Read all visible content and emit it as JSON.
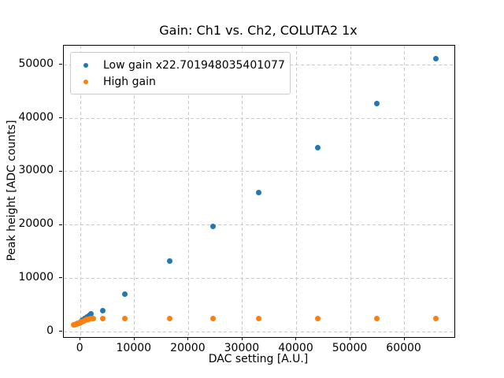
{
  "window": {
    "background": "#ffffff"
  },
  "chart_data": {
    "type": "scatter",
    "title": "Gain: Ch1 vs. Ch2, COLUTA2 1x",
    "xlabel": "DAC setting [A.U.]",
    "ylabel": "Peak height [ADC counts]",
    "xlim": [
      -3100,
      69250
    ],
    "ylim": [
      -1000,
      53600
    ],
    "xticks": [
      0,
      10000,
      20000,
      30000,
      40000,
      50000,
      60000
    ],
    "yticks": [
      0,
      10000,
      20000,
      30000,
      40000,
      50000
    ],
    "grid": true,
    "grid_style": "dashed",
    "grid_color": "#c9c9c9",
    "legend_position": "upper-left",
    "series": [
      {
        "name": "Low gain x22.701948035401077",
        "color": "#1f77b4",
        "marker": "dot",
        "points": [
          [
            0,
            1800
          ],
          [
            400,
            2110
          ],
          [
            800,
            2420
          ],
          [
            1200,
            2730
          ],
          [
            1600,
            3040
          ],
          [
            2000,
            3350
          ],
          [
            4100,
            4000
          ],
          [
            8200,
            7000
          ],
          [
            16450,
            13250
          ],
          [
            24600,
            19750
          ],
          [
            33000,
            26050
          ],
          [
            43950,
            34500
          ],
          [
            54900,
            42700
          ],
          [
            65850,
            51100
          ]
        ]
      },
      {
        "name": "High gain",
        "color": "#ff7f0e",
        "marker": "dot",
        "points": [
          [
            -1300,
            1300
          ],
          [
            -1100,
            1360
          ],
          [
            -900,
            1420
          ],
          [
            -700,
            1490
          ],
          [
            -500,
            1560
          ],
          [
            -300,
            1640
          ],
          [
            -100,
            1720
          ],
          [
            100,
            1810
          ],
          [
            300,
            1900
          ],
          [
            600,
            2030
          ],
          [
            900,
            2150
          ],
          [
            1200,
            2270
          ],
          [
            1500,
            2370
          ],
          [
            1800,
            2450
          ],
          [
            2100,
            2510
          ],
          [
            2300,
            2540
          ],
          [
            4100,
            2400
          ],
          [
            8200,
            2420
          ],
          [
            16450,
            2430
          ],
          [
            24600,
            2430
          ],
          [
            33000,
            2435
          ],
          [
            43950,
            2435
          ],
          [
            54900,
            2435
          ],
          [
            65850,
            2435
          ]
        ]
      }
    ]
  }
}
